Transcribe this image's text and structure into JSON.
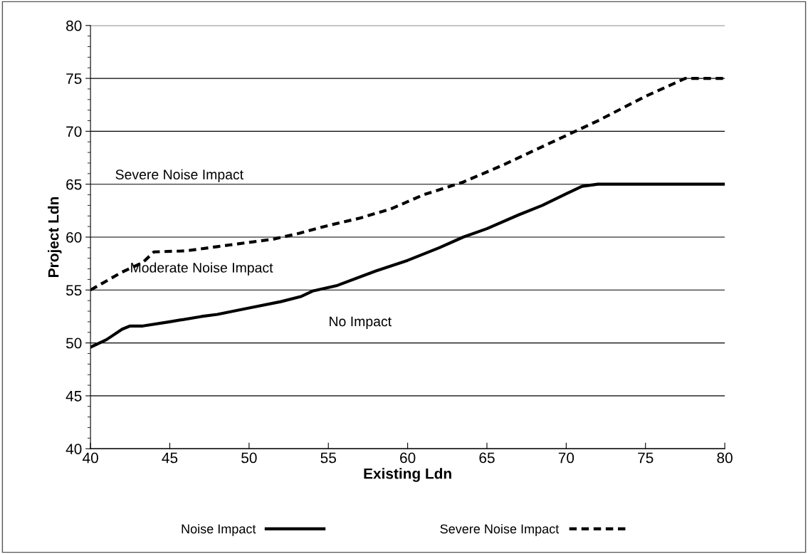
{
  "chart_data": {
    "type": "line",
    "xlabel": "Existing Ldn",
    "ylabel": "Project Ldn",
    "xlim": [
      40,
      80
    ],
    "xticks": [
      40,
      45,
      50,
      55,
      60,
      65,
      70,
      75,
      80
    ],
    "ylim": [
      40,
      80
    ],
    "yticks": [
      40,
      45,
      50,
      55,
      60,
      65,
      70,
      75,
      80
    ],
    "grid": "y",
    "legend": "bottom",
    "series": [
      {
        "name": "Noise Impact",
        "color": "#000000",
        "line_style": "solid",
        "x": [
          40,
          41,
          42,
          42.5,
          43.3,
          45,
          47,
          48,
          50,
          52,
          53.3,
          54,
          55.5,
          58,
          60,
          62,
          63.5,
          65,
          67,
          68.5,
          70,
          71,
          72,
          80
        ],
        "values": [
          49.6,
          50.3,
          51.3,
          51.6,
          51.6,
          52.0,
          52.5,
          52.7,
          53.3,
          53.9,
          54.4,
          54.9,
          55.4,
          56.8,
          57.8,
          59.0,
          60.0,
          60.8,
          62.1,
          63.0,
          64.1,
          64.8,
          65,
          65
        ]
      },
      {
        "name": "Severe Noise Impact",
        "color": "#000000",
        "line_style": "dashed",
        "x": [
          40,
          42,
          43.3,
          44,
          46,
          48,
          50,
          51.5,
          53,
          55,
          57,
          59,
          61,
          63.5,
          66,
          69,
          72,
          75,
          77.5,
          80
        ],
        "values": [
          55.0,
          56.7,
          57.6,
          58.6,
          58.7,
          59.1,
          59.5,
          59.8,
          60.3,
          61.1,
          61.8,
          62.7,
          64.0,
          65.2,
          66.8,
          68.9,
          71.0,
          73.3,
          75,
          75
        ]
      }
    ],
    "annotations": [
      "Severe Noise Impact",
      "Moderate Noise Impact",
      "No Impact"
    ]
  }
}
